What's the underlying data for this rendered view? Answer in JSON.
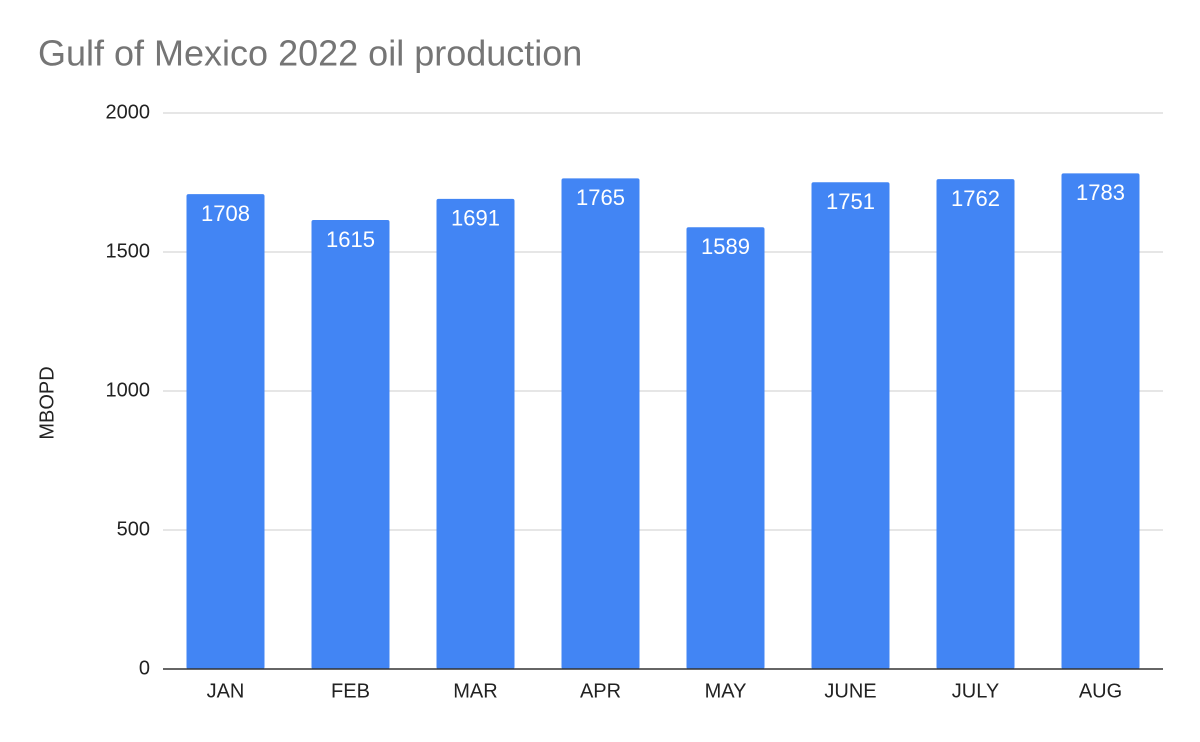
{
  "chart_data": {
    "type": "bar",
    "title": "Gulf of Mexico 2022 oil production",
    "y_label": "MBOPD",
    "categories": [
      "JAN",
      "FEB",
      "MAR",
      "APR",
      "MAY",
      "JUNE",
      "JULY",
      "AUG"
    ],
    "values": [
      1708,
      1615,
      1691,
      1765,
      1589,
      1751,
      1762,
      1783
    ],
    "color": "#4285f4",
    "ylim": [
      0,
      2000
    ],
    "yticks": [
      0,
      500,
      1000,
      1500,
      2000
    ],
    "grid": true,
    "data_labels": true
  }
}
